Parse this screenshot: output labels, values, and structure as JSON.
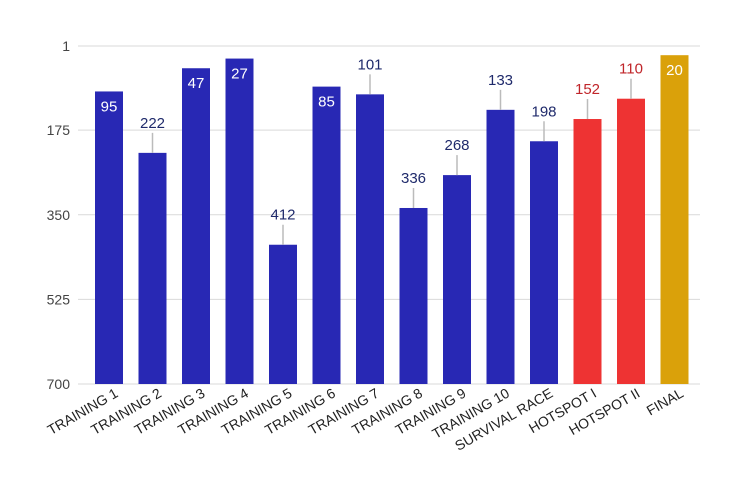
{
  "chart_data": {
    "type": "bar",
    "title": "",
    "xlabel": "",
    "ylabel": "",
    "ylim": [
      1,
      700
    ],
    "y_reversed": true,
    "grid": true,
    "legend": "none",
    "y_ticks": [
      1,
      175,
      350,
      525,
      700
    ],
    "categories": [
      "TRAINING 1",
      "TRAINING 2",
      "TRAINING 3",
      "TRAINING 4",
      "TRAINING 5",
      "TRAINING 6",
      "TRAINING 7",
      "TRAINING 8",
      "TRAINING 9",
      "TRAINING 10",
      "SURVIVAL RACE",
      "HOTSPOT I",
      "HOTSPOT II",
      "FINAL"
    ],
    "values": [
      95,
      222,
      47,
      27,
      412,
      85,
      101,
      336,
      268,
      133,
      198,
      152,
      110,
      20
    ],
    "colors": [
      "#2828b4",
      "#2828b4",
      "#2828b4",
      "#2828b4",
      "#2828b4",
      "#2828b4",
      "#2828b4",
      "#2828b4",
      "#2828b4",
      "#2828b4",
      "#2828b4",
      "#ee3333",
      "#ee3333",
      "#daa10a"
    ],
    "label_colors": [
      "#ffffff",
      "#1f2a6b",
      "#ffffff",
      "#ffffff",
      "#1f2a6b",
      "#ffffff",
      "#1f2a6b",
      "#1f2a6b",
      "#1f2a6b",
      "#1f2a6b",
      "#1f2a6b",
      "#c0252a",
      "#c0252a",
      "#ffffff"
    ],
    "label_inside": [
      true,
      false,
      true,
      true,
      false,
      true,
      false,
      false,
      false,
      false,
      false,
      false,
      false,
      true
    ]
  }
}
